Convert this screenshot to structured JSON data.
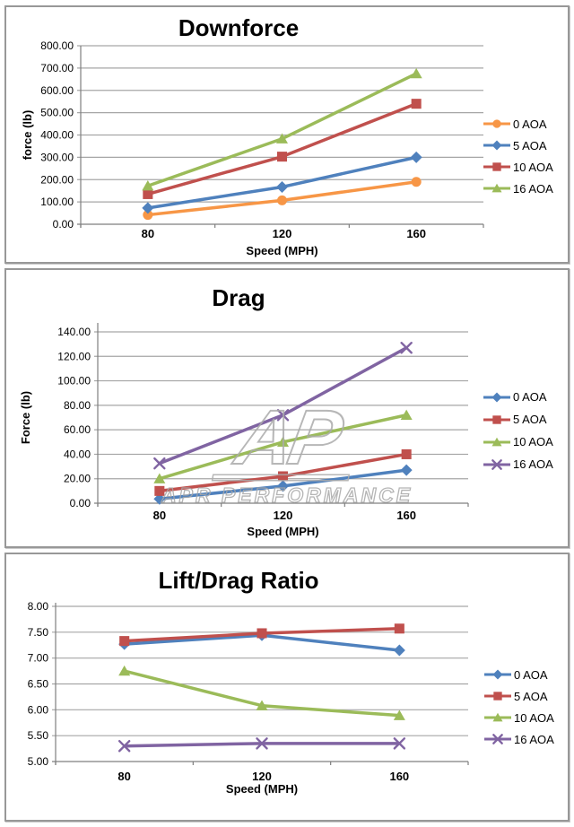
{
  "watermark": {
    "logo_text": "AP",
    "text": "APR PERFORMANCE"
  },
  "chart_data": [
    {
      "type": "line",
      "title": "Downforce",
      "xlabel": "Speed (MPH)",
      "ylabel": "force (lb)",
      "categories": [
        "80",
        "120",
        "160"
      ],
      "ylim": [
        0,
        800
      ],
      "ystep": 100,
      "grid": true,
      "legend_position": "right",
      "series": [
        {
          "name": "0 AOA",
          "color": "#F79646",
          "marker": "circle",
          "values": [
            42,
            107,
            190
          ]
        },
        {
          "name": "5 AOA",
          "color": "#4F81BD",
          "marker": "diamond",
          "values": [
            73,
            167,
            300
          ]
        },
        {
          "name": "10 AOA",
          "color": "#C0504D",
          "marker": "square",
          "values": [
            135,
            303,
            540
          ]
        },
        {
          "name": "16 AOA",
          "color": "#9BBB59",
          "marker": "triangle",
          "values": [
            172,
            383,
            675
          ]
        }
      ]
    },
    {
      "type": "line",
      "title": "Drag",
      "xlabel": "Speed (MPH)",
      "ylabel": "Force (lb)",
      "categories": [
        "80",
        "120",
        "160"
      ],
      "ylim": [
        0,
        140
      ],
      "ystep": 20,
      "grid": true,
      "legend_position": "right",
      "series": [
        {
          "name": "0 AOA",
          "color": "#4F81BD",
          "marker": "diamond",
          "values": [
            3.5,
            14,
            27
          ]
        },
        {
          "name": "5 AOA",
          "color": "#C0504D",
          "marker": "square",
          "values": [
            10,
            22,
            40
          ]
        },
        {
          "name": "10 AOA",
          "color": "#9BBB59",
          "marker": "triangle",
          "values": [
            20,
            50,
            72
          ]
        },
        {
          "name": "16 AOA",
          "color": "#8064A2",
          "marker": "x",
          "values": [
            32.5,
            72,
            127
          ]
        }
      ]
    },
    {
      "type": "line",
      "title": "Lift/Drag Ratio",
      "xlabel": "Speed (MPH)",
      "ylabel": "",
      "categories": [
        "80",
        "120",
        "160"
      ],
      "ylim": [
        5,
        8
      ],
      "ystep": 0.5,
      "grid": true,
      "legend_position": "right",
      "series": [
        {
          "name": "0 AOA",
          "color": "#4F81BD",
          "marker": "diamond",
          "values": [
            7.27,
            7.44,
            7.15
          ]
        },
        {
          "name": "5 AOA",
          "color": "#C0504D",
          "marker": "square",
          "values": [
            7.33,
            7.48,
            7.57
          ]
        },
        {
          "name": "10 AOA",
          "color": "#9BBB59",
          "marker": "triangle",
          "values": [
            6.75,
            6.08,
            5.89
          ]
        },
        {
          "name": "16 AOA",
          "color": "#8064A2",
          "marker": "x",
          "values": [
            5.3,
            5.35,
            5.35
          ]
        }
      ]
    }
  ]
}
